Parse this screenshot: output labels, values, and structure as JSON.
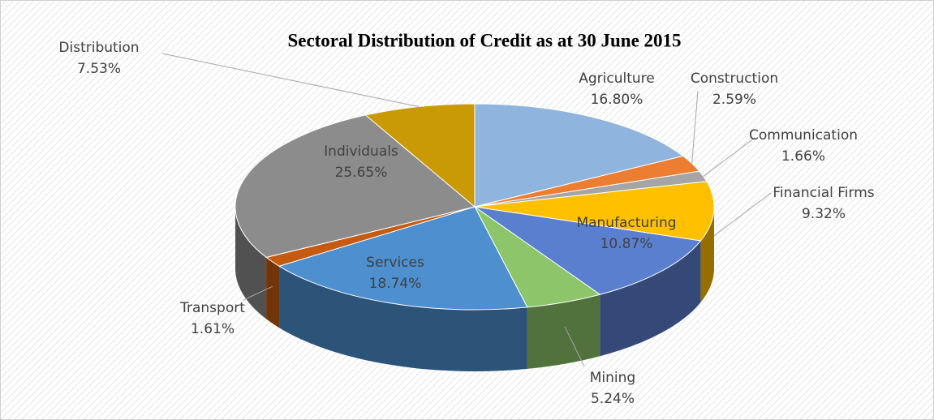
{
  "chart_data": {
    "type": "pie3d",
    "title": "Sectoral Distribution of Credit as at 30 June 2015",
    "categories": [
      "Agriculture",
      "Construction",
      "Communication",
      "Financial Firms",
      "Manufacturing",
      "Mining",
      "Services",
      "Transport",
      "Individuals",
      "Distribution"
    ],
    "values": [
      16.8,
      2.59,
      1.66,
      9.32,
      10.87,
      5.24,
      18.74,
      1.61,
      25.65,
      7.53
    ],
    "value_labels": [
      "16.80%",
      "2.59%",
      "1.66%",
      "9.32%",
      "10.87%",
      "5.24%",
      "18.74%",
      "1.61%",
      "25.65%",
      "7.53%"
    ],
    "colors": [
      "#8fb4de",
      "#ed7d31",
      "#a5a5a5",
      "#ffc000",
      "#5b7fcf",
      "#8cc56a",
      "#4d8fcf",
      "#c55a11",
      "#8c8c8c",
      "#c99a06"
    ]
  }
}
